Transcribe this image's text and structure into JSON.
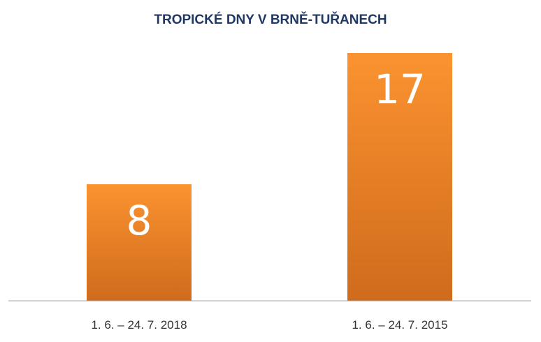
{
  "chart_data": {
    "type": "bar",
    "title": "TROPICKÉ DNY V BRNĚ-TUŘANECH",
    "categories": [
      "1. 6. – 24. 7. 2018",
      "1. 6. – 24. 7. 2015"
    ],
    "values": [
      8,
      17
    ],
    "data_labels": [
      "8",
      "17"
    ],
    "xlabel": "",
    "ylabel": "",
    "ylim": [
      0,
      20
    ],
    "grid": false,
    "legend": "none",
    "colors": {
      "bar_top": "#fb9330",
      "bar_bottom": "#cf6b1c",
      "title": "#1f3864",
      "axis": "#a6a6a6"
    }
  }
}
